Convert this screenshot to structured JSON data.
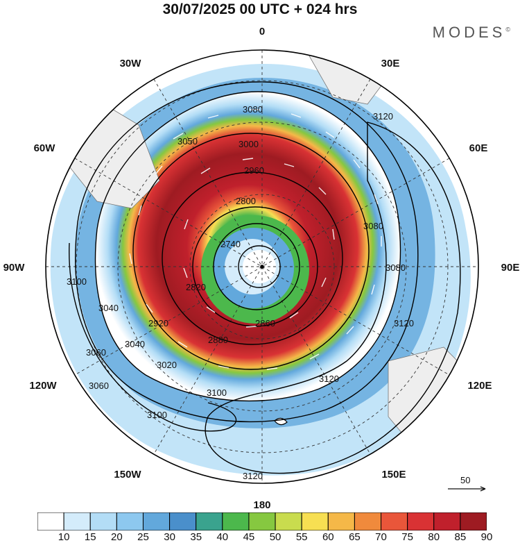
{
  "header": {
    "title": "30/07/2025  00 UTC  + 024 hrs",
    "brand": "MODES",
    "brand_mark": "©"
  },
  "map": {
    "projection": "south-polar-stereographic",
    "longitude_labels": [
      "0",
      "30E",
      "60E",
      "90E",
      "120E",
      "150E",
      "180",
      "150W",
      "120W",
      "90W",
      "60W",
      "30W"
    ],
    "contour_labels": [
      "3080",
      "3060",
      "3050",
      "3000",
      "2960",
      "2800",
      "2740",
      "2820",
      "2860",
      "3040",
      "3100",
      "3120",
      "3100",
      "3080",
      "3060",
      "3040",
      "2920",
      "2880",
      "3020",
      "3120",
      "3100",
      "3120",
      "3120",
      "3080"
    ],
    "vector_reference": {
      "label": "50",
      "value": 50
    }
  },
  "colorbar": {
    "labels": [
      "10",
      "15",
      "20",
      "25",
      "30",
      "35",
      "40",
      "45",
      "50",
      "55",
      "60",
      "65",
      "70",
      "75",
      "80",
      "85",
      "90"
    ],
    "colors": [
      "#ffffff",
      "#d4ecfb",
      "#b3ddf6",
      "#8dc8ef",
      "#62a8dc",
      "#4a8fcb",
      "#3aa38e",
      "#4cb84c",
      "#86c840",
      "#c9dc4e",
      "#f7df52",
      "#f5b848",
      "#f08a3c",
      "#e9563a",
      "#d93234",
      "#c0202c",
      "#9e1b22"
    ]
  }
}
